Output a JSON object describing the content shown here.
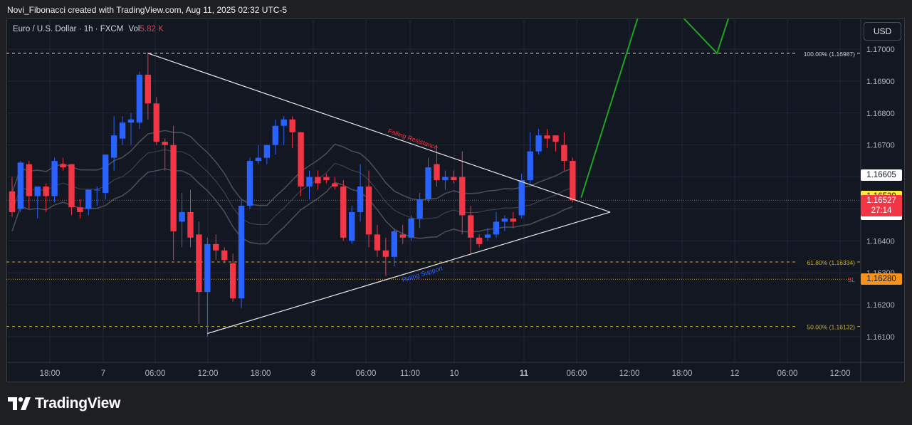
{
  "caption": "Novi_Fibonacci created with TradingView.com, Aug 11, 2025 02:32 UTC-5",
  "legend": {
    "symbol": "Euro / U.S. Dollar · 1h · FXCM",
    "vol_label": "Vol",
    "vol_value": "5.82 K"
  },
  "currency_button": "USD",
  "brand": "TradingView",
  "colors": {
    "up": "#2962ff",
    "down": "#f23645",
    "projection": "#1ea51e",
    "fib": "#c9b22c",
    "sl": "#f7931a"
  },
  "chart_data": {
    "type": "candlestick",
    "x_ticks": [
      "18:00",
      "7",
      "06:00",
      "12:00",
      "18:00",
      "8",
      "06:00",
      "11:00",
      "10",
      "11",
      "06:00",
      "12:00",
      "18:00",
      "12",
      "06:00",
      "12:00"
    ],
    "y_ticks": [
      "1.17000",
      "1.16900",
      "1.16800",
      "1.16700",
      "1.16600",
      "1.16500",
      "1.16400",
      "1.16300",
      "1.16200",
      "1.16100"
    ],
    "ylim": [
      1.1603,
      1.171
    ],
    "candles": [
      {
        "o": 1.16555,
        "h": 1.166,
        "l": 1.16475,
        "c": 1.1649
      },
      {
        "o": 1.165,
        "h": 1.1665,
        "l": 1.1649,
        "c": 1.16645
      },
      {
        "o": 1.1664,
        "h": 1.1665,
        "l": 1.165,
        "c": 1.1654
      },
      {
        "o": 1.1654,
        "h": 1.1657,
        "l": 1.1647,
        "c": 1.1657
      },
      {
        "o": 1.1657,
        "h": 1.1658,
        "l": 1.1649,
        "c": 1.1654
      },
      {
        "o": 1.1654,
        "h": 1.1666,
        "l": 1.1652,
        "c": 1.1665
      },
      {
        "o": 1.1664,
        "h": 1.1666,
        "l": 1.1662,
        "c": 1.1663
      },
      {
        "o": 1.1664,
        "h": 1.1664,
        "l": 1.1648,
        "c": 1.16505
      },
      {
        "o": 1.16505,
        "h": 1.1653,
        "l": 1.1647,
        "c": 1.1649
      },
      {
        "o": 1.165,
        "h": 1.1656,
        "l": 1.1648,
        "c": 1.1656
      },
      {
        "o": 1.1656,
        "h": 1.1657,
        "l": 1.1651,
        "c": 1.1656
      },
      {
        "o": 1.1655,
        "h": 1.1667,
        "l": 1.1653,
        "c": 1.1667
      },
      {
        "o": 1.1666,
        "h": 1.1679,
        "l": 1.1662,
        "c": 1.1673
      },
      {
        "o": 1.1672,
        "h": 1.1679,
        "l": 1.167,
        "c": 1.1677
      },
      {
        "o": 1.1677,
        "h": 1.168,
        "l": 1.167,
        "c": 1.1678
      },
      {
        "o": 1.1677,
        "h": 1.1693,
        "l": 1.1675,
        "c": 1.1692
      },
      {
        "o": 1.1692,
        "h": 1.1699,
        "l": 1.1678,
        "c": 1.1683
      },
      {
        "o": 1.1683,
        "h": 1.1685,
        "l": 1.167,
        "c": 1.1671
      },
      {
        "o": 1.1671,
        "h": 1.1672,
        "l": 1.1662,
        "c": 1.167
      },
      {
        "o": 1.167,
        "h": 1.1676,
        "l": 1.1634,
        "c": 1.1643
      },
      {
        "o": 1.1646,
        "h": 1.1655,
        "l": 1.1638,
        "c": 1.1649
      },
      {
        "o": 1.1649,
        "h": 1.1656,
        "l": 1.1638,
        "c": 1.1641
      },
      {
        "o": 1.1642,
        "h": 1.1646,
        "l": 1.1614,
        "c": 1.1624
      },
      {
        "o": 1.1624,
        "h": 1.1641,
        "l": 1.161,
        "c": 1.1639
      },
      {
        "o": 1.1639,
        "h": 1.1642,
        "l": 1.1634,
        "c": 1.1637
      },
      {
        "o": 1.1637,
        "h": 1.1638,
        "l": 1.1633,
        "c": 1.1634
      },
      {
        "o": 1.1633,
        "h": 1.1636,
        "l": 1.1621,
        "c": 1.1622
      },
      {
        "o": 1.1622,
        "h": 1.1653,
        "l": 1.1619,
        "c": 1.1651
      },
      {
        "o": 1.1651,
        "h": 1.1666,
        "l": 1.165,
        "c": 1.1665
      },
      {
        "o": 1.1665,
        "h": 1.167,
        "l": 1.1664,
        "c": 1.1666
      },
      {
        "o": 1.1666,
        "h": 1.167,
        "l": 1.1664,
        "c": 1.167
      },
      {
        "o": 1.167,
        "h": 1.1678,
        "l": 1.1667,
        "c": 1.1676
      },
      {
        "o": 1.1676,
        "h": 1.1679,
        "l": 1.167,
        "c": 1.1678
      },
      {
        "o": 1.1678,
        "h": 1.1679,
        "l": 1.1669,
        "c": 1.1674
      },
      {
        "o": 1.1674,
        "h": 1.1674,
        "l": 1.1654,
        "c": 1.1657
      },
      {
        "o": 1.1657,
        "h": 1.1662,
        "l": 1.1653,
        "c": 1.166
      },
      {
        "o": 1.166,
        "h": 1.1662,
        "l": 1.1656,
        "c": 1.1658
      },
      {
        "o": 1.166,
        "h": 1.1661,
        "l": 1.1658,
        "c": 1.1659
      },
      {
        "o": 1.1658,
        "h": 1.166,
        "l": 1.1656,
        "c": 1.1657
      },
      {
        "o": 1.1657,
        "h": 1.1659,
        "l": 1.164,
        "c": 1.1641
      },
      {
        "o": 1.164,
        "h": 1.1651,
        "l": 1.1639,
        "c": 1.1649
      },
      {
        "o": 1.1649,
        "h": 1.1664,
        "l": 1.1646,
        "c": 1.1657
      },
      {
        "o": 1.1657,
        "h": 1.1662,
        "l": 1.1638,
        "c": 1.1642
      },
      {
        "o": 1.1642,
        "h": 1.1645,
        "l": 1.1635,
        "c": 1.1637
      },
      {
        "o": 1.1637,
        "h": 1.1641,
        "l": 1.1629,
        "c": 1.1635
      },
      {
        "o": 1.1635,
        "h": 1.1644,
        "l": 1.1632,
        "c": 1.1643
      },
      {
        "o": 1.1642,
        "h": 1.1645,
        "l": 1.1639,
        "c": 1.1641
      },
      {
        "o": 1.1641,
        "h": 1.1648,
        "l": 1.164,
        "c": 1.1647
      },
      {
        "o": 1.1647,
        "h": 1.1655,
        "l": 1.1644,
        "c": 1.1653
      },
      {
        "o": 1.1653,
        "h": 1.1666,
        "l": 1.1652,
        "c": 1.1663
      },
      {
        "o": 1.1664,
        "h": 1.167,
        "l": 1.1657,
        "c": 1.1659
      },
      {
        "o": 1.1659,
        "h": 1.1662,
        "l": 1.1656,
        "c": 1.166
      },
      {
        "o": 1.166,
        "h": 1.1662,
        "l": 1.1658,
        "c": 1.1659
      },
      {
        "o": 1.166,
        "h": 1.1668,
        "l": 1.1642,
        "c": 1.1648
      },
      {
        "o": 1.1648,
        "h": 1.1651,
        "l": 1.1636,
        "c": 1.1641
      },
      {
        "o": 1.1641,
        "h": 1.1642,
        "l": 1.1638,
        "c": 1.1639
      },
      {
        "o": 1.1641,
        "h": 1.1644,
        "l": 1.164,
        "c": 1.1642
      },
      {
        "o": 1.1642,
        "h": 1.1649,
        "l": 1.1641,
        "c": 1.1646
      },
      {
        "o": 1.1646,
        "h": 1.1648,
        "l": 1.1643,
        "c": 1.1647
      },
      {
        "o": 1.1647,
        "h": 1.1649,
        "l": 1.1644,
        "c": 1.1646
      },
      {
        "o": 1.1648,
        "h": 1.1661,
        "l": 1.1647,
        "c": 1.1659
      },
      {
        "o": 1.1659,
        "h": 1.1674,
        "l": 1.1658,
        "c": 1.1668
      },
      {
        "o": 1.1668,
        "h": 1.1675,
        "l": 1.1667,
        "c": 1.1673
      },
      {
        "o": 1.1673,
        "h": 1.1675,
        "l": 1.1669,
        "c": 1.1672
      },
      {
        "o": 1.1673,
        "h": 1.1673,
        "l": 1.1668,
        "c": 1.1671
      },
      {
        "o": 1.167,
        "h": 1.1674,
        "l": 1.1662,
        "c": 1.1665
      },
      {
        "o": 1.1665,
        "h": 1.1666,
        "l": 1.1652,
        "c": 1.16527
      }
    ],
    "trendlines": [
      {
        "label": "Falling Resistance",
        "from": {
          "bar": 16,
          "price": 1.16987
        },
        "to": {
          "bar": 70,
          "price": 1.1649
        }
      },
      {
        "label": "Rising Support",
        "from": {
          "bar": 23,
          "price": 1.1611
        },
        "to": {
          "bar": 70,
          "price": 1.1649
        }
      }
    ],
    "fib_levels": [
      {
        "label": "100.00% (1.16987)",
        "price": 1.16987
      },
      {
        "label": "61.80% (1.16334)",
        "price": 1.16334
      },
      {
        "label": "50.00% (1.16132)",
        "price": 1.16132
      }
    ],
    "sl": {
      "label": "SL",
      "price": 1.1628,
      "text": "1.16280"
    },
    "projection": [
      {
        "bar": 67,
        "price": 1.16535
      },
      {
        "bar": 75,
        "price": 1.1721
      },
      {
        "bar": 83,
        "price": 1.16987
      },
      {
        "bar": 86,
        "price": 1.1723
      }
    ],
    "price_labels": [
      {
        "text": "1.16605",
        "price": 1.16605,
        "style": "white"
      },
      {
        "text": "1.16539",
        "price": 1.16539,
        "style": "yellow"
      },
      {
        "text": "1.16483",
        "price": 1.16483,
        "style": "white"
      }
    ],
    "last_price": {
      "text": "1.16527",
      "countdown": "27:14",
      "price": 1.16527
    }
  }
}
